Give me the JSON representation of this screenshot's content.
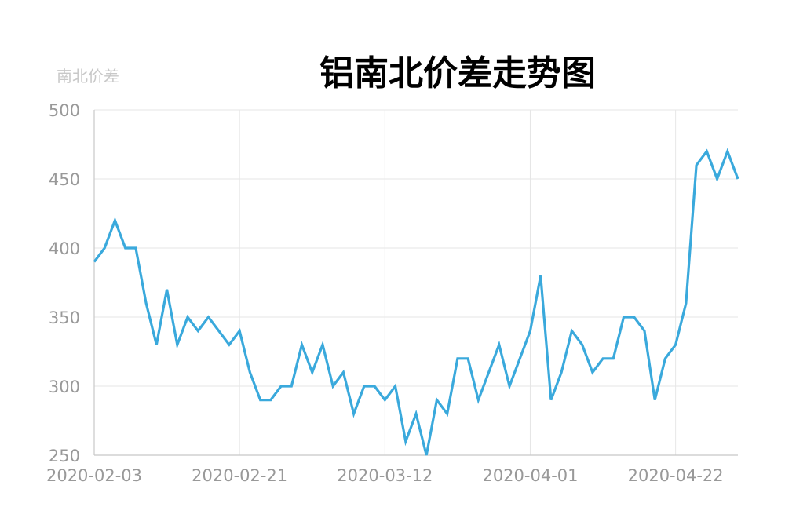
{
  "chart_data": {
    "type": "line",
    "title": "铝南北价差走势图",
    "ylabel": "南北价差",
    "ylim": [
      250,
      500
    ],
    "yticks": [
      250,
      300,
      350,
      400,
      450,
      500
    ],
    "xtick_labels": [
      "2020-02-03",
      "2020-02-21",
      "2020-03-12",
      "2020-04-01",
      "2020-04-22"
    ],
    "grid": true,
    "line_color": "#3aa9dc",
    "series": [
      {
        "values": [
          390,
          400,
          420,
          400,
          400,
          360,
          330,
          370,
          330,
          350,
          340,
          350,
          340,
          330,
          340,
          310,
          290,
          290,
          300,
          300,
          330,
          310,
          330,
          300,
          310,
          280,
          300,
          300,
          290,
          300,
          260,
          280,
          250,
          290,
          280,
          320,
          320,
          290,
          310,
          330,
          300,
          320,
          340,
          380,
          290,
          310,
          340,
          330,
          310,
          320,
          320,
          350,
          350,
          340,
          290,
          320,
          330,
          360,
          460,
          470,
          450,
          470,
          450
        ]
      }
    ]
  }
}
